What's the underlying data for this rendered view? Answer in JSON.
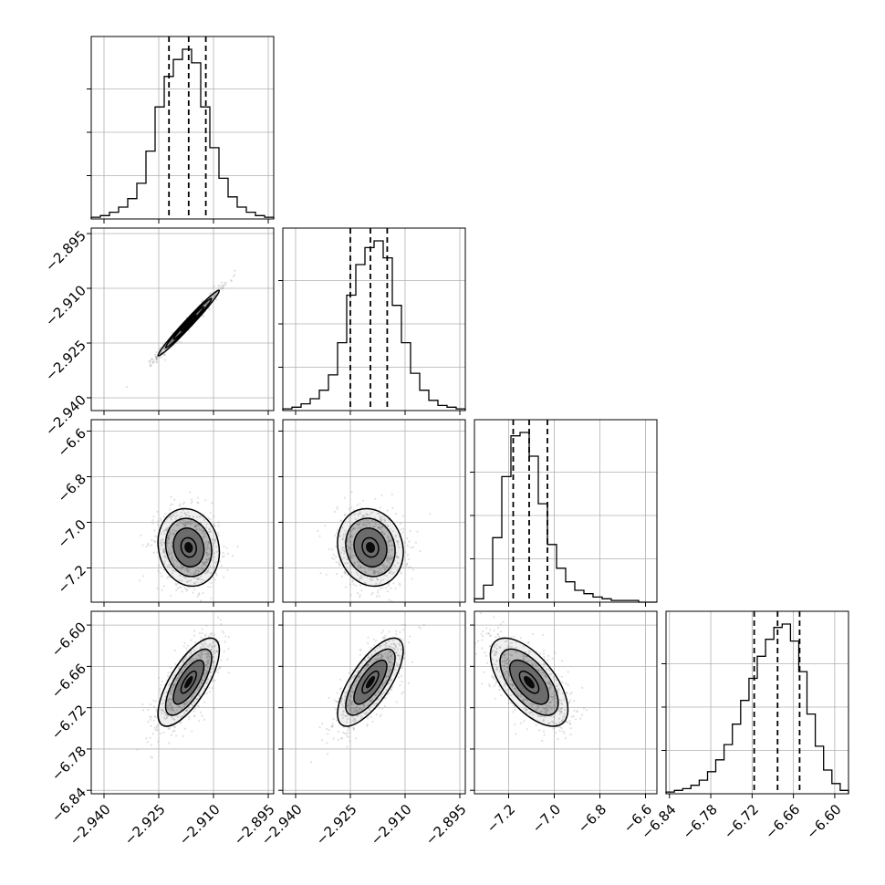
{
  "chart_data": {
    "type": "corner",
    "parameters": [
      {
        "range": [
          -2.9435,
          -2.8935
        ],
        "ticks": [
          -2.94,
          -2.925,
          -2.91,
          -2.895
        ],
        "tick_labels": [
          "−2.940",
          "−2.925",
          "−2.910",
          "−2.895"
        ]
      },
      {
        "range": [
          -2.9435,
          -2.8935
        ],
        "ticks": [
          -2.94,
          -2.925,
          -2.91,
          -2.895
        ],
        "tick_labels": [
          "−2.940",
          "−2.925",
          "−2.910",
          "−2.895"
        ]
      },
      {
        "range": [
          -7.35,
          -6.55
        ],
        "ticks": [
          -7.2,
          -7.0,
          -6.8,
          -6.6
        ],
        "tick_labels": [
          "−7.2",
          "−7.0",
          "−6.8",
          "−6.6"
        ]
      },
      {
        "range": [
          -6.845,
          -6.58
        ],
        "ticks": [
          -6.84,
          -6.78,
          -6.72,
          -6.66,
          -6.6
        ],
        "tick_labels": [
          "−6.84",
          "−6.78",
          "−6.72",
          "−6.66",
          "−6.60"
        ]
      }
    ],
    "histograms": [
      {
        "param": 0,
        "counts": [
          1,
          2,
          4,
          7,
          12,
          21,
          40,
          66,
          84,
          94,
          100,
          92,
          66,
          42,
          24,
          13,
          7,
          4,
          2,
          1
        ],
        "quantiles": [
          -2.9222,
          -2.9168,
          -2.9121
        ]
      },
      {
        "param": 1,
        "counts": [
          1,
          2,
          4,
          7,
          12,
          21,
          40,
          68,
          86,
          96,
          100,
          90,
          62,
          40,
          22,
          12,
          6,
          3,
          2,
          1
        ],
        "quantiles": [
          -2.925,
          -2.9195,
          -2.9149
        ]
      },
      {
        "param": 2,
        "counts": [
          2,
          10,
          38,
          74,
          98,
          100,
          86,
          58,
          34,
          20,
          12,
          7,
          5,
          3,
          2,
          1,
          1,
          1,
          0,
          0
        ],
        "quantiles": [
          -7.18,
          -7.11,
          -7.03
        ]
      },
      {
        "param": 3,
        "counts": [
          1,
          2,
          3,
          5,
          8,
          13,
          20,
          29,
          41,
          55,
          68,
          81,
          91,
          98,
          100,
          90,
          72,
          47,
          28,
          14,
          6,
          2
        ],
        "quantiles": [
          -6.717,
          -6.683,
          -6.651
        ]
      }
    ],
    "pairs": [
      {
        "x": 0,
        "y": 1,
        "center": [
          -2.9168,
          -2.9195
        ],
        "sd": [
          0.0042,
          0.0045
        ],
        "rho": 0.985
      },
      {
        "x": 0,
        "y": 2,
        "center": [
          -2.9168,
          -7.11
        ],
        "sd": [
          0.0042,
          0.085
        ],
        "rho": -0.12
      },
      {
        "x": 1,
        "y": 2,
        "center": [
          -2.9195,
          -7.11
        ],
        "sd": [
          0.0045,
          0.085
        ],
        "rho": -0.12
      },
      {
        "x": 0,
        "y": 3,
        "center": [
          -2.9168,
          -6.683
        ],
        "sd": [
          0.0042,
          0.032
        ],
        "rho": 0.72
      },
      {
        "x": 1,
        "y": 3,
        "center": [
          -2.9195,
          -6.683
        ],
        "sd": [
          0.0045,
          0.032
        ],
        "rho": 0.72
      },
      {
        "x": 2,
        "y": 3,
        "center": [
          -7.11,
          -6.683
        ],
        "sd": [
          0.085,
          0.032
        ],
        "rho": -0.62
      }
    ],
    "contour_levels": [
      0.5,
      1.0,
      1.5,
      2.0
    ],
    "grid": true,
    "colors": {
      "line": "#000000",
      "grid": "#b0b0b0",
      "scatter": "#9a9a9a",
      "density": "#000000"
    }
  }
}
